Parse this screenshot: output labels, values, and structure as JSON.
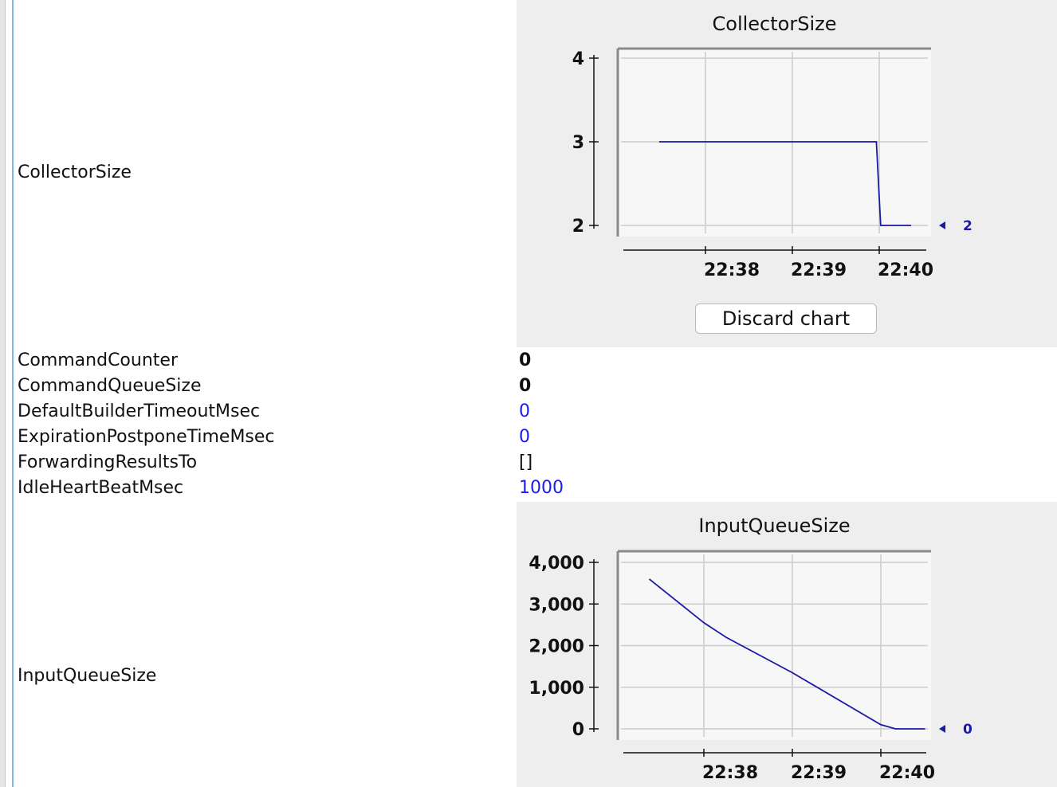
{
  "attributes": [
    {
      "name": "CollectorSize",
      "type": "chart",
      "chart_index": 0
    },
    {
      "name": "CommandCounter",
      "value": "0",
      "style": "bold"
    },
    {
      "name": "CommandQueueSize",
      "value": "0",
      "style": "bold"
    },
    {
      "name": "DefaultBuilderTimeoutMsec",
      "value": "0",
      "style": "blue"
    },
    {
      "name": "ExpirationPostponeTimeMsec",
      "value": "0",
      "style": "blue"
    },
    {
      "name": "ForwardingResultsTo",
      "value": "[]",
      "style": "plain"
    },
    {
      "name": "IdleHeartBeatMsec",
      "value": "1000",
      "style": "blue"
    },
    {
      "name": "InputQueueSize",
      "type": "chart",
      "chart_index": 1
    }
  ],
  "discard_button_label": "Discard chart",
  "colors": {
    "panel_bg": "#eeeeee",
    "plot_bg": "#f7f7f7",
    "series": "#1a1aa8",
    "editable_value": "#1a1aff",
    "sidebar_line": "#7fb2e6"
  },
  "chart_data": [
    {
      "type": "line",
      "title": "CollectorSize",
      "x_ticks": [
        "22:38",
        "22:39",
        "22:40"
      ],
      "y_ticks": [
        "4",
        "3",
        "2"
      ],
      "ylim": [
        2,
        4
      ],
      "series": [
        {
          "values": [
            {
              "x": "22:37:28",
              "y": 3
            },
            {
              "x": "22:39:58",
              "y": 3
            },
            {
              "x": "22:40:01",
              "y": 2
            },
            {
              "x": "22:40:22",
              "y": 2
            }
          ]
        }
      ],
      "current_value": "2",
      "grid": true
    },
    {
      "type": "line",
      "title": "InputQueueSize",
      "x_ticks": [
        "22:38",
        "22:39",
        "22:40"
      ],
      "y_ticks": [
        "4,000",
        "3,000",
        "2,000",
        "1,000",
        "0"
      ],
      "ylim": [
        0,
        4000
      ],
      "series": [
        {
          "values": [
            {
              "x": "22:37:23",
              "y": 3600
            },
            {
              "x": "22:38:00",
              "y": 2550
            },
            {
              "x": "22:38:15",
              "y": 2200
            },
            {
              "x": "22:39:00",
              "y": 1350
            },
            {
              "x": "22:40:00",
              "y": 100
            },
            {
              "x": "22:40:10",
              "y": 0
            },
            {
              "x": "22:40:30",
              "y": 0
            }
          ]
        }
      ],
      "current_value": "0",
      "grid": true
    }
  ]
}
